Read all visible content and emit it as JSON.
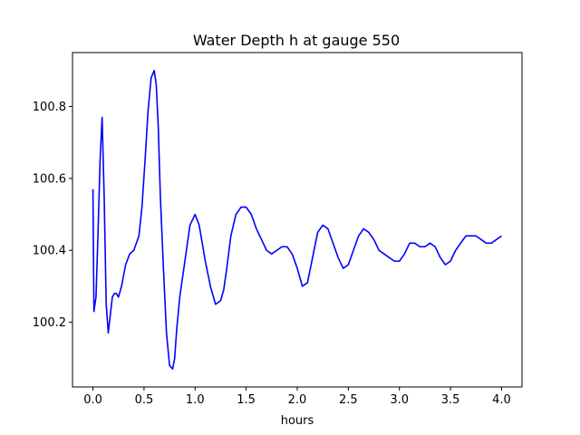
{
  "chart_data": {
    "type": "line",
    "title": "Water Depth h at gauge 550",
    "xlabel": "hours",
    "ylabel": "",
    "xlim": [
      -0.2,
      4.2
    ],
    "ylim": [
      100.02,
      100.95
    ],
    "xticks": [
      0.0,
      0.5,
      1.0,
      1.5,
      2.0,
      2.5,
      3.0,
      3.5,
      4.0
    ],
    "xtick_labels": [
      "0.0",
      "0.5",
      "1.0",
      "1.5",
      "2.0",
      "2.5",
      "3.0",
      "3.5",
      "4.0"
    ],
    "yticks": [
      100.2,
      100.4,
      100.6,
      100.8
    ],
    "ytick_labels": [
      "100.2",
      "100.4",
      "100.6",
      "100.8"
    ],
    "grid": false,
    "series": [
      {
        "color": "#0000ff",
        "x": [
          0.0,
          0.01,
          0.03,
          0.05,
          0.07,
          0.09,
          0.11,
          0.13,
          0.15,
          0.17,
          0.19,
          0.21,
          0.23,
          0.25,
          0.28,
          0.32,
          0.36,
          0.4,
          0.45,
          0.48,
          0.51,
          0.54,
          0.57,
          0.6,
          0.62,
          0.64,
          0.66,
          0.69,
          0.72,
          0.75,
          0.78,
          0.8,
          0.82,
          0.85,
          0.88,
          0.91,
          0.95,
          1.0,
          1.04,
          1.07,
          1.1,
          1.15,
          1.2,
          1.25,
          1.28,
          1.31,
          1.35,
          1.4,
          1.45,
          1.5,
          1.55,
          1.6,
          1.65,
          1.7,
          1.75,
          1.8,
          1.85,
          1.9,
          1.95,
          2.0,
          2.05,
          2.1,
          2.15,
          2.2,
          2.25,
          2.3,
          2.35,
          2.4,
          2.45,
          2.5,
          2.55,
          2.6,
          2.65,
          2.7,
          2.75,
          2.8,
          2.85,
          2.9,
          2.95,
          3.0,
          3.05,
          3.1,
          3.15,
          3.2,
          3.25,
          3.3,
          3.35,
          3.4,
          3.45,
          3.5,
          3.55,
          3.6,
          3.65,
          3.7,
          3.75,
          3.8,
          3.85,
          3.9,
          3.95,
          4.0
        ],
        "y": [
          100.57,
          100.23,
          100.27,
          100.45,
          100.65,
          100.77,
          100.55,
          100.25,
          100.17,
          100.22,
          100.27,
          100.28,
          100.28,
          100.27,
          100.3,
          100.36,
          100.39,
          100.4,
          100.44,
          100.52,
          100.65,
          100.79,
          100.88,
          100.9,
          100.86,
          100.74,
          100.55,
          100.35,
          100.17,
          100.08,
          100.07,
          100.1,
          100.18,
          100.27,
          100.33,
          100.39,
          100.47,
          100.5,
          100.47,
          100.42,
          100.37,
          100.3,
          100.25,
          100.26,
          100.29,
          100.35,
          100.44,
          100.5,
          100.52,
          100.52,
          100.5,
          100.46,
          100.43,
          100.4,
          100.39,
          100.4,
          100.41,
          100.41,
          100.39,
          100.35,
          100.3,
          100.31,
          100.38,
          100.45,
          100.47,
          100.46,
          100.42,
          100.38,
          100.35,
          100.36,
          100.4,
          100.44,
          100.46,
          100.45,
          100.43,
          100.4,
          100.39,
          100.38,
          100.37,
          100.37,
          100.39,
          100.42,
          100.42,
          100.41,
          100.41,
          100.42,
          100.41,
          100.38,
          100.36,
          100.37,
          100.4,
          100.42,
          100.44,
          100.44,
          100.44,
          100.43,
          100.42,
          100.42,
          100.43,
          100.44
        ]
      }
    ]
  }
}
